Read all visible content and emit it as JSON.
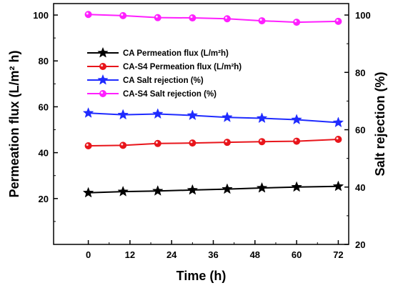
{
  "chart_data": {
    "type": "line",
    "x": [
      0,
      10,
      20,
      30,
      40,
      50,
      60,
      72
    ],
    "xlabel": "Time (h)",
    "ylabel_left": "Permeation flux (L/m² h)",
    "ylabel_right": "Salt rejection (%)",
    "xticks": [
      "0",
      "12",
      "24",
      "36",
      "48",
      "60",
      "72"
    ],
    "xtick_values": [
      0,
      12,
      24,
      36,
      48,
      60,
      72
    ],
    "xlim": [
      -10,
      75
    ],
    "yticks_left": [
      "20",
      "40",
      "60",
      "80",
      "100"
    ],
    "ylim_left": [
      0,
      105
    ],
    "yticks_right": [
      "20",
      "40",
      "60",
      "80",
      "100"
    ],
    "ylim_right": [
      20,
      104
    ],
    "legend_position": "upper-left-center",
    "grid": false,
    "series": [
      {
        "name": "CA Permeation flux (L/m²h)",
        "axis": "left",
        "color": "#000000",
        "marker": "star",
        "values": [
          22.5,
          23.0,
          23.3,
          23.7,
          24.1,
          24.6,
          25.0,
          25.3
        ]
      },
      {
        "name": "CA-S4 Permeation flux (L/m²h)",
        "axis": "left",
        "color": "#e8151b",
        "marker": "circle",
        "values": [
          43.0,
          43.2,
          44.0,
          44.2,
          44.5,
          44.8,
          45.0,
          45.8
        ]
      },
      {
        "name": "CA Salt rejection (%)",
        "axis": "right",
        "color": "#1f2bff",
        "marker": "star",
        "values": [
          65.8,
          65.2,
          65.5,
          65.0,
          64.3,
          64.0,
          63.5,
          62.5
        ]
      },
      {
        "name": "CA-S4 Salt rejection (%)",
        "axis": "right",
        "color": "#ff1fff",
        "marker": "circle",
        "values": [
          100.2,
          99.8,
          99.1,
          99.0,
          98.7,
          98.0,
          97.5,
          97.8
        ]
      }
    ]
  }
}
